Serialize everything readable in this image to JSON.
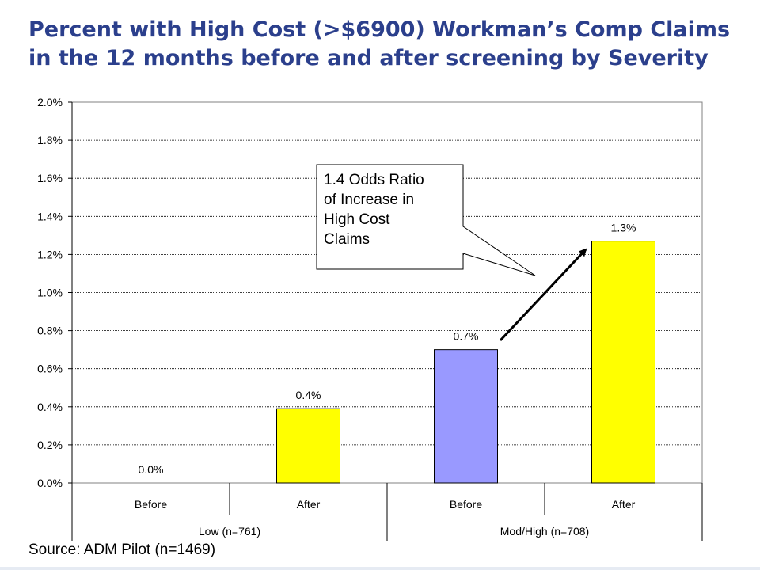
{
  "title_line1": "Percent with High Cost (>$6900) Workman’s Comp Claims",
  "title_line2": "in the 12 months before and after screening by Severity",
  "source": "Source: ADM Pilot (n=1469)",
  "callout": {
    "line1": "1.4 Odds Ratio",
    "line2": "of Increase in",
    "line3": "High Cost",
    "line4": "Claims"
  },
  "chart_data": {
    "type": "bar",
    "categories": [
      "Before",
      "After",
      "Before",
      "After"
    ],
    "groups": [
      {
        "label": "Low (n=761)",
        "span": 2
      },
      {
        "label": "Mod/High (n=708)",
        "span": 2
      }
    ],
    "values": [
      0.0,
      0.4,
      0.7,
      1.3
    ],
    "bar_heights": [
      0.0,
      0.39,
      0.7,
      1.27
    ],
    "data_labels": [
      "0.0%",
      "0.4%",
      "0.7%",
      "1.3%"
    ],
    "bar_colors": [
      "#ffff00",
      "#ffff00",
      "#9999ff",
      "#ffff00"
    ],
    "ylim": [
      0,
      2.0
    ],
    "yticks": [
      "0.0%",
      "0.2%",
      "0.4%",
      "0.6%",
      "0.8%",
      "1.0%",
      "1.2%",
      "1.4%",
      "1.6%",
      "1.8%",
      "2.0%"
    ],
    "grid": true,
    "legend": "none"
  }
}
